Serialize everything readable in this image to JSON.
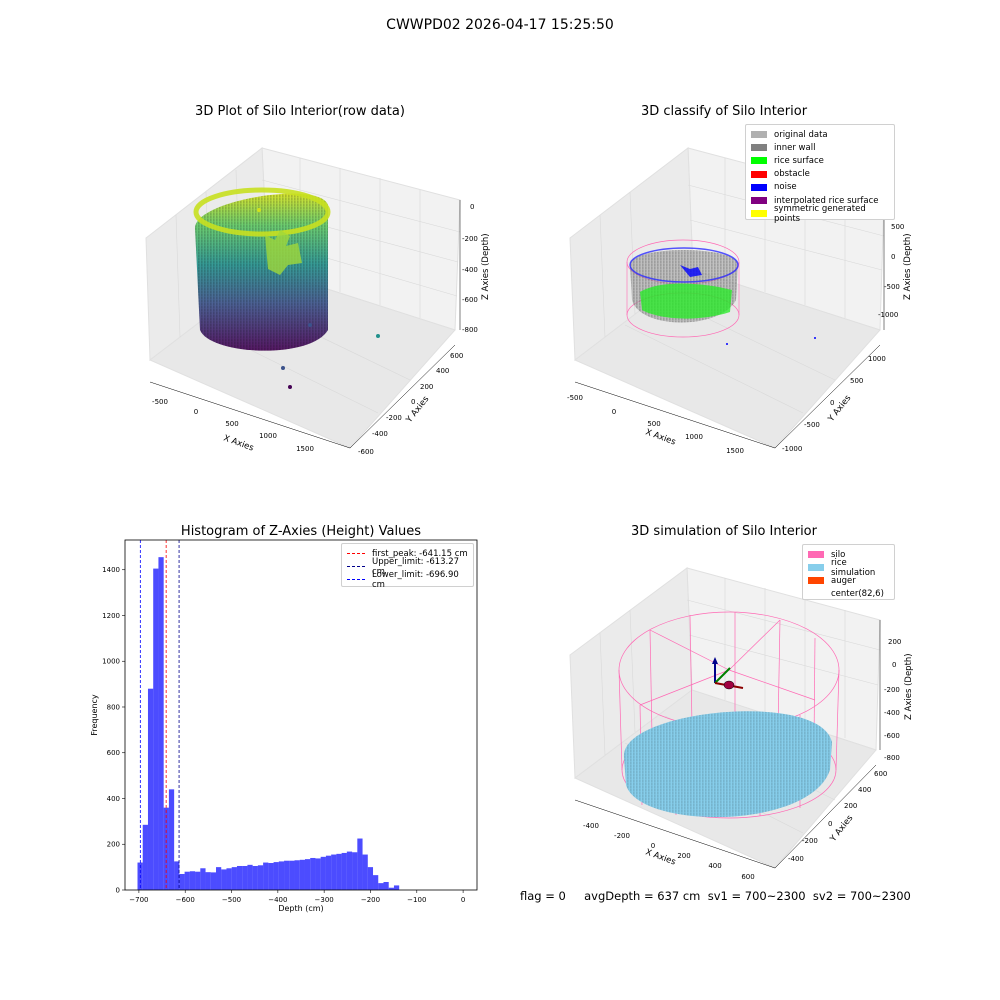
{
  "suptitle": "CWWPD02 2026-04-17 15:25:50",
  "footer": "flag = 0     avgDepth = 637 cm  sv1 = 700~2300  sv2 = 700~2300",
  "chart_data": [
    {
      "type": "scatter",
      "projection": "3d",
      "title": "3D Plot of Silo Interior(row data)",
      "xlabel": "X Axies",
      "ylabel": "Y Axies",
      "zlabel": "Z Axies (Depth)",
      "xticks": [
        "-500",
        "0",
        "500",
        "1000",
        "1500"
      ],
      "yticks": [
        "-600",
        "-400",
        "-200",
        "0",
        "200",
        "400",
        "600"
      ],
      "zticks": [
        "-800",
        "-600",
        "-400",
        "-200",
        "0"
      ],
      "xlim": [
        -600,
        1800
      ],
      "ylim": [
        -650,
        650
      ],
      "zlim": [
        -900,
        0
      ],
      "colormap": "viridis",
      "description_points": "cylindrical silo wall point cloud, radius about 450, depth 0 to -850, plus outliers near (1100,0,-130), (600,-250,-850), (700,-400,-900)"
    },
    {
      "type": "scatter",
      "projection": "3d",
      "title": "3D classify of Silo Interior",
      "xlabel": "X Axies",
      "ylabel": "Y Axies",
      "zlabel": "Z Axies (Depth)",
      "xticks": [
        "-500",
        "0",
        "500",
        "1000",
        "1500"
      ],
      "yticks": [
        "-1000",
        "-500",
        "0",
        "500",
        "1000"
      ],
      "zticks": [
        "-1000",
        "-500",
        "0",
        "500"
      ],
      "legend": [
        {
          "label": "original data",
          "color": "#b0b0b0"
        },
        {
          "label": "inner wall",
          "color": "#808080"
        },
        {
          "label": "rice surface",
          "color": "#00ff00"
        },
        {
          "label": "obstacle",
          "color": "#ff0000"
        },
        {
          "label": "noise",
          "color": "#0000ff"
        },
        {
          "label": "interpolated rice surface",
          "color": "#800080"
        },
        {
          "label": "symmetric generated points",
          "color": "#ffff00"
        }
      ],
      "legend_loc": "upper right"
    },
    {
      "type": "bar",
      "title": "Histogram of Z-Axies (Height) Values",
      "xlabel": "Depth (cm)",
      "ylabel": "Frequency",
      "xlim": [
        -730,
        30
      ],
      "ylim": [
        0,
        1530
      ],
      "xticks": [
        -700,
        -600,
        -500,
        -400,
        -300,
        -200,
        -100,
        0
      ],
      "yticks": [
        0,
        200,
        400,
        600,
        800,
        1000,
        1200,
        1400
      ],
      "bin_start": -703,
      "bin_width": 11.3,
      "values": [
        120,
        285,
        880,
        1405,
        1455,
        360,
        440,
        125,
        70,
        80,
        82,
        80,
        95,
        78,
        77,
        100,
        90,
        95,
        100,
        105,
        105,
        110,
        105,
        108,
        120,
        118,
        122,
        125,
        128,
        128,
        130,
        132,
        135,
        140,
        138,
        145,
        150,
        155,
        158,
        162,
        168,
        165,
        225,
        155,
        100,
        65,
        30,
        35,
        10,
        20
      ],
      "bar_color": "#0000ff",
      "vlines": [
        {
          "label": "first_peak: -641.15 cm",
          "x": -641.15,
          "color": "#ff0000"
        },
        {
          "label": "Upper_limit: -613.27 cm",
          "x": -613.27,
          "color": "#00008b"
        },
        {
          "label": "Lower_limit: -696.90 cm",
          "x": -696.9,
          "color": "#0000ff"
        }
      ],
      "legend_loc": "upper right"
    },
    {
      "type": "surface",
      "projection": "3d",
      "title": "3D simulation of Silo Interior",
      "xlabel": "X Axies",
      "ylabel": "Y Axies",
      "zlabel": "Z Axies (Depth)",
      "xticks": [
        "-400",
        "-200",
        "0",
        "200",
        "400",
        "600"
      ],
      "yticks": [
        "-400",
        "-200",
        "0",
        "200",
        "400",
        "600"
      ],
      "zticks": [
        "-800",
        "-600",
        "-400",
        "-200",
        "0",
        "200"
      ],
      "legend": [
        {
          "label": "silo",
          "color": "#ff69b4"
        },
        {
          "label": "rice simulation",
          "color": "#87ceeb"
        },
        {
          "label": "auger",
          "color": "#ff4500"
        },
        {
          "label": "center(82,6)",
          "color": ""
        }
      ],
      "legend_loc": "upper right"
    }
  ]
}
